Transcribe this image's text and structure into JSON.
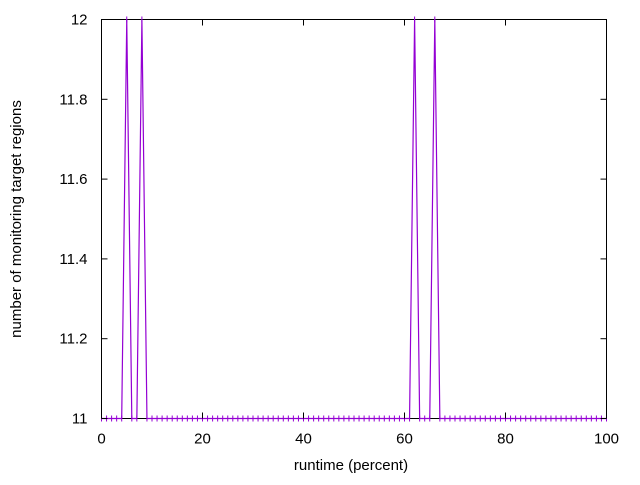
{
  "chart_data": {
    "type": "line",
    "title": "",
    "xlabel": "runtime (percent)",
    "ylabel": "number of monitoring target regions",
    "xlim": [
      0,
      100
    ],
    "ylim": [
      11,
      12
    ],
    "xticks": [
      0,
      20,
      40,
      60,
      80,
      100
    ],
    "xtick_labels": [
      "0",
      "20",
      "40",
      "60",
      "80",
      "100"
    ],
    "yticks": [
      11,
      11.2,
      11.4,
      11.6,
      11.8,
      12
    ],
    "ytick_labels": [
      "11",
      "11.2",
      "11.4",
      "11.6",
      "11.8",
      "12"
    ],
    "grid": false,
    "legend": "none",
    "series": [
      {
        "color": "#9400d3",
        "x": [
          0,
          1,
          2,
          3,
          4,
          5,
          6,
          7,
          8,
          9,
          10,
          11,
          12,
          13,
          14,
          15,
          16,
          17,
          18,
          19,
          20,
          21,
          22,
          23,
          24,
          25,
          26,
          27,
          28,
          29,
          30,
          31,
          32,
          33,
          34,
          35,
          36,
          37,
          38,
          39,
          40,
          41,
          42,
          43,
          44,
          45,
          46,
          47,
          48,
          49,
          50,
          51,
          52,
          53,
          54,
          55,
          56,
          57,
          58,
          59,
          60,
          61,
          62,
          63,
          64,
          65,
          66,
          67,
          68,
          69,
          70,
          71,
          72,
          73,
          74,
          75,
          76,
          77,
          78,
          79,
          80,
          81,
          82,
          83,
          84,
          85,
          86,
          87,
          88,
          89,
          90,
          91,
          92,
          93,
          94,
          95,
          96,
          97,
          98,
          99,
          100
        ],
        "y": [
          11,
          11,
          11,
          11,
          11,
          12,
          11,
          11,
          12,
          11,
          11,
          11,
          11,
          11,
          11,
          11,
          11,
          11,
          11,
          11,
          11,
          11,
          11,
          11,
          11,
          11,
          11,
          11,
          11,
          11,
          11,
          11,
          11,
          11,
          11,
          11,
          11,
          11,
          11,
          11,
          11,
          11,
          11,
          11,
          11,
          11,
          11,
          11,
          11,
          11,
          11,
          11,
          11,
          11,
          11,
          11,
          11,
          11,
          11,
          11,
          11,
          11,
          12,
          11,
          11,
          11,
          12,
          11,
          11,
          11,
          11,
          11,
          11,
          11,
          11,
          11,
          11,
          11,
          11,
          11,
          11,
          11,
          11,
          11,
          11,
          11,
          11,
          11,
          11,
          11,
          11,
          11,
          11,
          11,
          11,
          11,
          11,
          11,
          11,
          11,
          11
        ]
      }
    ]
  }
}
